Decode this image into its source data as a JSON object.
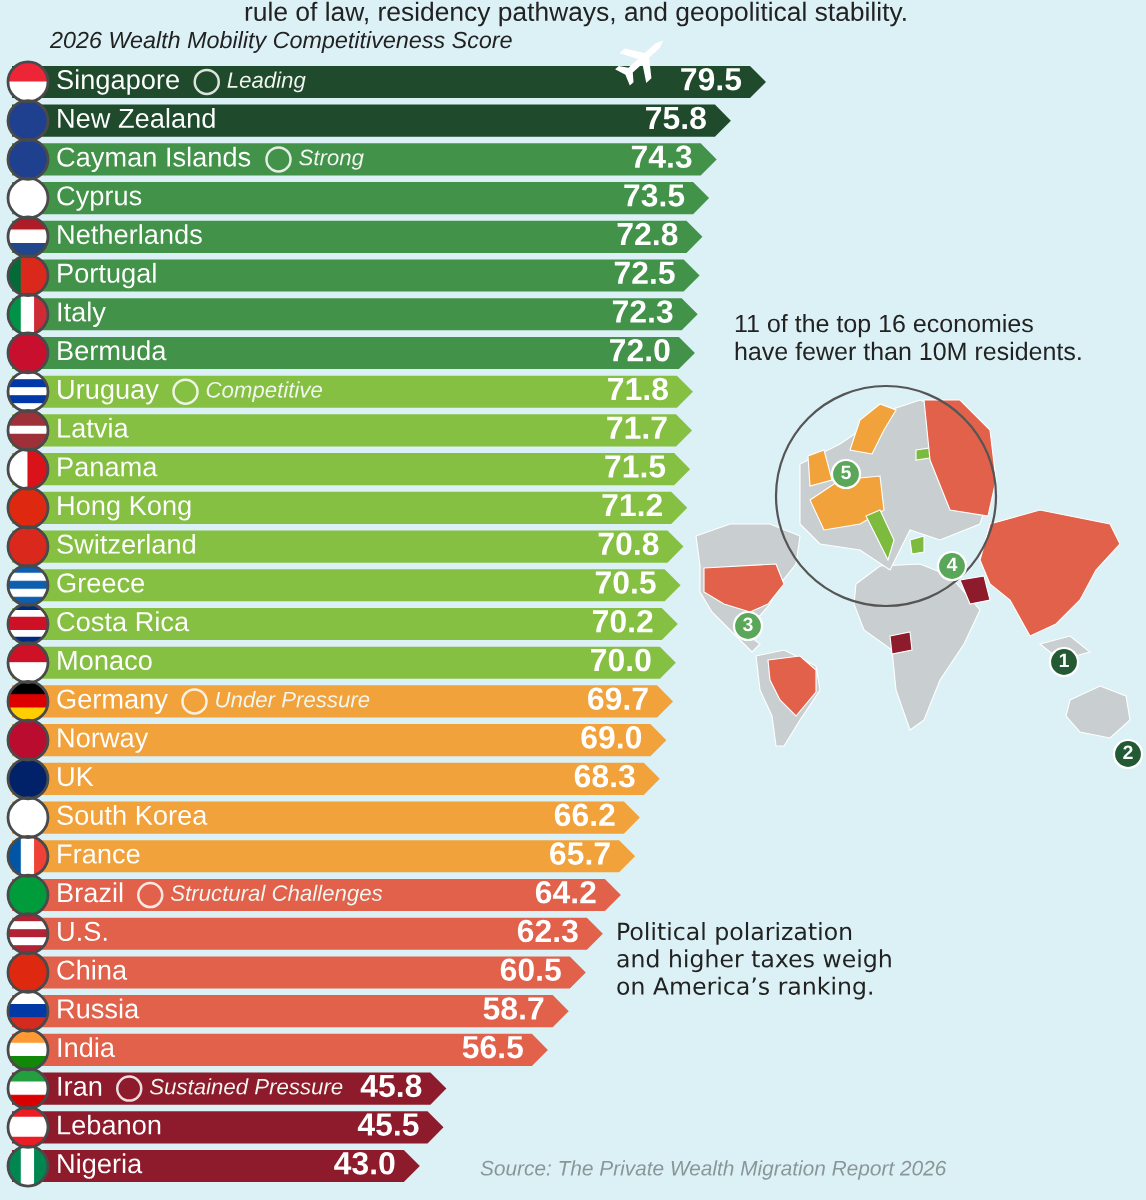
{
  "chart_data": {
    "type": "bar",
    "orientation": "horizontal",
    "stacked": true,
    "subtitle": "rule of law, residency pathways, and geopolitical stability.",
    "title": "2026 Wealth Mobility Competitiveness Score",
    "categories": [
      "Singapore",
      "New Zealand",
      "Cayman Islands",
      "Cyprus",
      "Netherlands",
      "Portugal",
      "Italy",
      "Bermuda",
      "Uruguay",
      "Latvia",
      "Panama",
      "Hong Kong",
      "Switzerland",
      "Greece",
      "Costa Rica",
      "Monaco",
      "Germany",
      "Norway",
      "UK",
      "South Korea",
      "France",
      "Brazil",
      "U.S.",
      "China",
      "Russia",
      "India",
      "Iran",
      "Lebanon",
      "Nigeria"
    ],
    "series": [
      {
        "name": "Leading",
        "color": "#1f4a2c",
        "values": [
          79.5,
          75.8,
          null,
          null,
          null,
          null,
          null,
          null,
          null,
          null,
          null,
          null,
          null,
          null,
          null,
          null,
          null,
          null,
          null,
          null,
          null,
          null,
          null,
          null,
          null,
          null,
          null,
          null,
          null
        ],
        "value_labels": [
          "79.5",
          "75.8",
          null,
          null,
          null,
          null,
          null,
          null,
          null,
          null,
          null,
          null,
          null,
          null,
          null,
          null,
          null,
          null,
          null,
          null,
          null,
          null,
          null,
          null,
          null,
          null,
          null,
          null,
          null
        ]
      },
      {
        "name": "Strong",
        "color": "#43924a",
        "values": [
          null,
          null,
          74.3,
          73.5,
          72.8,
          72.5,
          72.3,
          72.0,
          null,
          null,
          null,
          null,
          null,
          null,
          null,
          null,
          null,
          null,
          null,
          null,
          null,
          null,
          null,
          null,
          null,
          null,
          null,
          null,
          null
        ],
        "value_labels": [
          null,
          null,
          "74.3",
          "73.5",
          "72.8",
          "72.5",
          "72.3",
          "72.0",
          null,
          null,
          null,
          null,
          null,
          null,
          null,
          null,
          null,
          null,
          null,
          null,
          null,
          null,
          null,
          null,
          null,
          null,
          null,
          null,
          null
        ]
      },
      {
        "name": "Competitive",
        "color": "#86c043",
        "values": [
          null,
          null,
          null,
          null,
          null,
          null,
          null,
          null,
          71.8,
          71.7,
          71.5,
          71.2,
          70.8,
          70.5,
          70.2,
          70.0,
          null,
          null,
          null,
          null,
          null,
          null,
          null,
          null,
          null,
          null,
          null,
          null,
          null
        ],
        "value_labels": [
          null,
          null,
          null,
          null,
          null,
          null,
          null,
          null,
          "71.8",
          "71.7",
          "71.5",
          "71.2",
          "70.8",
          "70.5",
          "70.2",
          "70.0",
          null,
          null,
          null,
          null,
          null,
          null,
          null,
          null,
          null,
          null,
          null,
          null,
          null
        ]
      },
      {
        "name": "Under Pressure",
        "color": "#f2a23a",
        "values": [
          null,
          null,
          null,
          null,
          null,
          null,
          null,
          null,
          null,
          null,
          null,
          null,
          null,
          null,
          null,
          null,
          69.7,
          69.0,
          68.3,
          66.2,
          65.7,
          null,
          null,
          null,
          null,
          null,
          null,
          null,
          null
        ],
        "value_labels": [
          null,
          null,
          null,
          null,
          null,
          null,
          null,
          null,
          null,
          null,
          null,
          null,
          null,
          null,
          null,
          null,
          "69.7",
          "69.0",
          "68.3",
          "66.2",
          "65.7",
          null,
          null,
          null,
          null,
          null,
          null,
          null,
          null
        ]
      },
      {
        "name": "Structural Challenges",
        "color": "#e2614a",
        "values": [
          null,
          null,
          null,
          null,
          null,
          null,
          null,
          null,
          null,
          null,
          null,
          null,
          null,
          null,
          null,
          null,
          null,
          null,
          null,
          null,
          null,
          64.2,
          62.3,
          60.5,
          58.7,
          56.5,
          null,
          null,
          null
        ],
        "value_labels": [
          null,
          null,
          null,
          null,
          null,
          null,
          null,
          null,
          null,
          null,
          null,
          null,
          null,
          null,
          null,
          null,
          null,
          null,
          null,
          null,
          null,
          "64.2",
          "62.3",
          "60.5",
          "58.7",
          "56.5",
          null,
          null,
          null
        ]
      },
      {
        "name": "Sustained Pressure",
        "color": "#8e1b2b",
        "values": [
          null,
          null,
          null,
          null,
          null,
          null,
          null,
          null,
          null,
          null,
          null,
          null,
          null,
          null,
          null,
          null,
          null,
          null,
          null,
          null,
          null,
          null,
          null,
          null,
          null,
          null,
          45.8,
          45.5,
          43.0
        ],
        "value_labels": [
          null,
          null,
          null,
          null,
          null,
          null,
          null,
          null,
          null,
          null,
          null,
          null,
          null,
          null,
          null,
          null,
          null,
          null,
          null,
          null,
          null,
          null,
          null,
          null,
          null,
          null,
          "45.8",
          "45.5",
          "43.0"
        ]
      }
    ],
    "annotations": [
      "11 of the top 16 economies have fewer than 10M residents.",
      "Political polarization and higher taxes weigh on America’s ranking.",
      "Source: The Private Wealth Migration Report 2026",
      "1",
      "2",
      "3",
      "4",
      "5"
    ]
  }
}
